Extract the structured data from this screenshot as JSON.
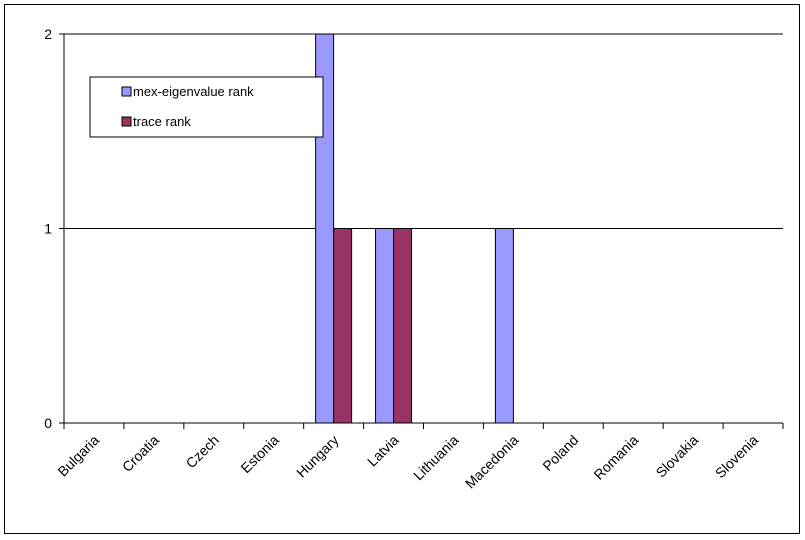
{
  "chart_data": {
    "type": "bar",
    "title": "",
    "xlabel": "",
    "ylabel": "",
    "categories": [
      "Bulgaria",
      "Croatia",
      "Czech",
      "Estonia",
      "Hungary",
      "Latvia",
      "Lithuania",
      "Macedonia",
      "Poland",
      "Romania",
      "Slovakia",
      "Slovenia"
    ],
    "series": [
      {
        "name": "mex-eigenvalue rank",
        "values": [
          0,
          0,
          0,
          0,
          2,
          1,
          0,
          1,
          0,
          0,
          0,
          0
        ],
        "color": "#9999FF"
      },
      {
        "name": "trace rank",
        "values": [
          0,
          0,
          0,
          0,
          1,
          1,
          0,
          0,
          0,
          0,
          0,
          0
        ],
        "color": "#993366"
      }
    ],
    "ylim": [
      0,
      2
    ],
    "yticks": [
      "0",
      "1",
      "2"
    ],
    "grid": true,
    "legend": "top-left"
  }
}
